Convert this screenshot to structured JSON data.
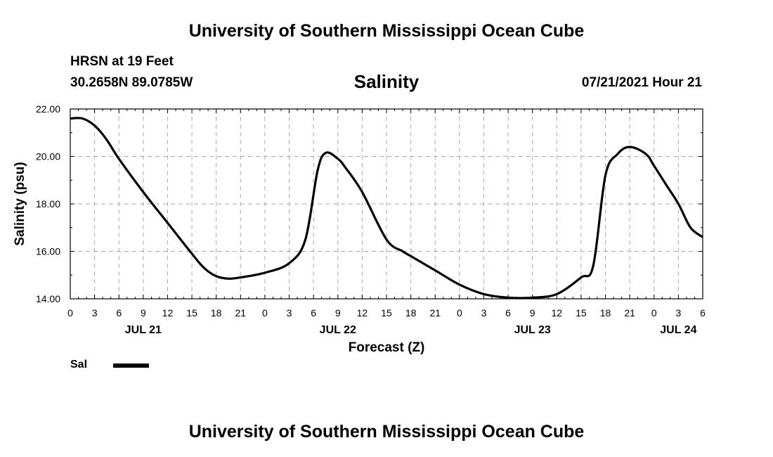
{
  "header": {
    "title_top": "University of Southern Mississippi Ocean Cube",
    "station": "HRSN at 19 Feet",
    "coords": "30.2658N  89.0785W",
    "date": "07/21/2021 Hour 21",
    "title_bottom": "University of Southern Mississippi Ocean Cube"
  },
  "legend": {
    "label": "Sal"
  },
  "colors": {
    "line": "#000000",
    "grid": "#aaaaaa",
    "background": "#ffffff"
  },
  "chart_data": {
    "type": "line",
    "title": "Salinity",
    "xlabel": "Forecast (Z)",
    "ylabel": "Salinity (psu)",
    "xlim": [
      0,
      78
    ],
    "ylim": [
      14,
      22
    ],
    "grid": true,
    "x_tick_labels": [
      "0",
      "3",
      "6",
      "9",
      "12",
      "15",
      "18",
      "21",
      "0",
      "3",
      "6",
      "9",
      "12",
      "15",
      "18",
      "21",
      "0",
      "3",
      "6",
      "9",
      "12",
      "15",
      "18",
      "21",
      "0",
      "3",
      "6"
    ],
    "y_tick_labels": [
      "14.00",
      "16.00",
      "18.00",
      "20.00",
      "22.00"
    ],
    "y_ticks": [
      14,
      16,
      18,
      20,
      22
    ],
    "date_labels": [
      {
        "hour": 9,
        "label": "JUL 21"
      },
      {
        "hour": 33,
        "label": "JUL 22"
      },
      {
        "hour": 57,
        "label": "JUL 23"
      },
      {
        "hour": 75,
        "label": "JUL 24"
      }
    ],
    "series": [
      {
        "name": "Sal",
        "x": [
          0,
          1.5,
          3,
          4.5,
          6,
          9,
          12,
          15,
          16.5,
          18,
          19.5,
          21,
          24,
          27,
          29,
          30.5,
          31.5,
          33,
          34,
          36,
          39,
          41,
          42,
          45,
          48,
          51,
          54,
          57,
          60,
          63,
          64.5,
          66,
          67.5,
          69,
          71,
          72,
          73.5,
          75,
          76.5,
          78
        ],
        "values": [
          21.6,
          21.6,
          21.3,
          20.7,
          19.9,
          18.5,
          17.2,
          15.9,
          15.3,
          14.95,
          14.85,
          14.9,
          15.1,
          15.5,
          16.5,
          19.4,
          20.15,
          19.9,
          19.5,
          18.5,
          16.5,
          16.0,
          15.8,
          15.2,
          14.6,
          14.2,
          14.05,
          14.05,
          14.2,
          14.9,
          15.4,
          19.2,
          20.1,
          20.4,
          20.1,
          19.6,
          18.8,
          18.0,
          17.0,
          16.6
        ]
      }
    ]
  }
}
